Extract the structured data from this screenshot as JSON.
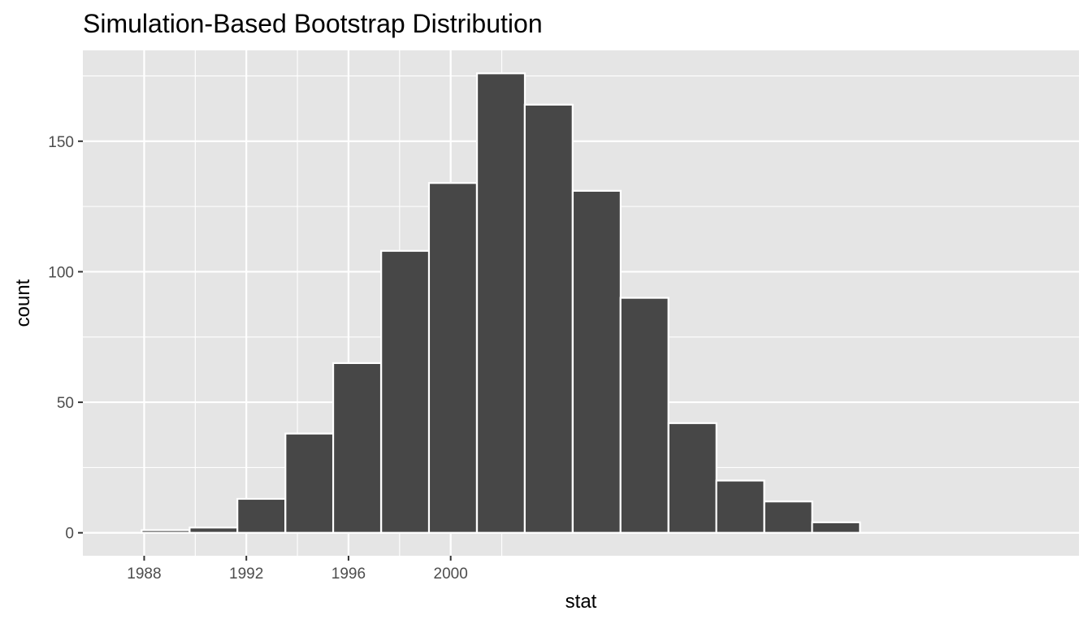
{
  "chart_data": {
    "type": "bar",
    "title": "Simulation-Based Bootstrap Distribution",
    "xlabel": "stat",
    "ylabel": "count",
    "bin_width": 1.875,
    "bins": [
      {
        "x_start": 1987.9,
        "count": 1
      },
      {
        "x_start": 1989.78,
        "count": 2
      },
      {
        "x_start": 1991.65,
        "count": 13
      },
      {
        "x_start": 1993.53,
        "count": 38
      },
      {
        "x_start": 1995.4,
        "count": 65
      },
      {
        "x_start": 1997.28,
        "count": 108
      },
      {
        "x_start": 1999.15,
        "count": 134
      },
      {
        "x_start": 2001.03,
        "count": 176
      },
      {
        "x_start": 2002.9,
        "count": 164
      },
      {
        "x_start": 2004.78,
        "count": 131
      },
      {
        "x_start": 2006.65,
        "count": 90
      },
      {
        "x_start": 2008.53,
        "count": 42
      },
      {
        "x_start": 2010.4,
        "count": 20
      },
      {
        "x_start": 2012.28,
        "count": 12
      },
      {
        "x_start": 2014.15,
        "count": 4
      }
    ],
    "x_ticks": [
      {
        "value": 1988,
        "label": "1988"
      },
      {
        "value": 1992,
        "label": "1992"
      },
      {
        "value": 1996,
        "label": "1996"
      },
      {
        "value": 2000,
        "label": "2000"
      }
    ],
    "y_ticks": [
      {
        "value": 0,
        "label": "0"
      },
      {
        "value": 50,
        "label": "50"
      },
      {
        "value": 100,
        "label": "100"
      },
      {
        "value": 150,
        "label": "150"
      }
    ],
    "xlim": [
      1985.6,
      2024.6
    ],
    "ylim": [
      -8.8,
      184.8
    ],
    "grid": true,
    "colors": {
      "panel_background": "#e5e5e5",
      "grid": "#ffffff",
      "bar_fill": "#474747",
      "bar_outline": "#ffffff",
      "tick_text": "#4d4d4d",
      "tick_mark": "#333333"
    }
  }
}
